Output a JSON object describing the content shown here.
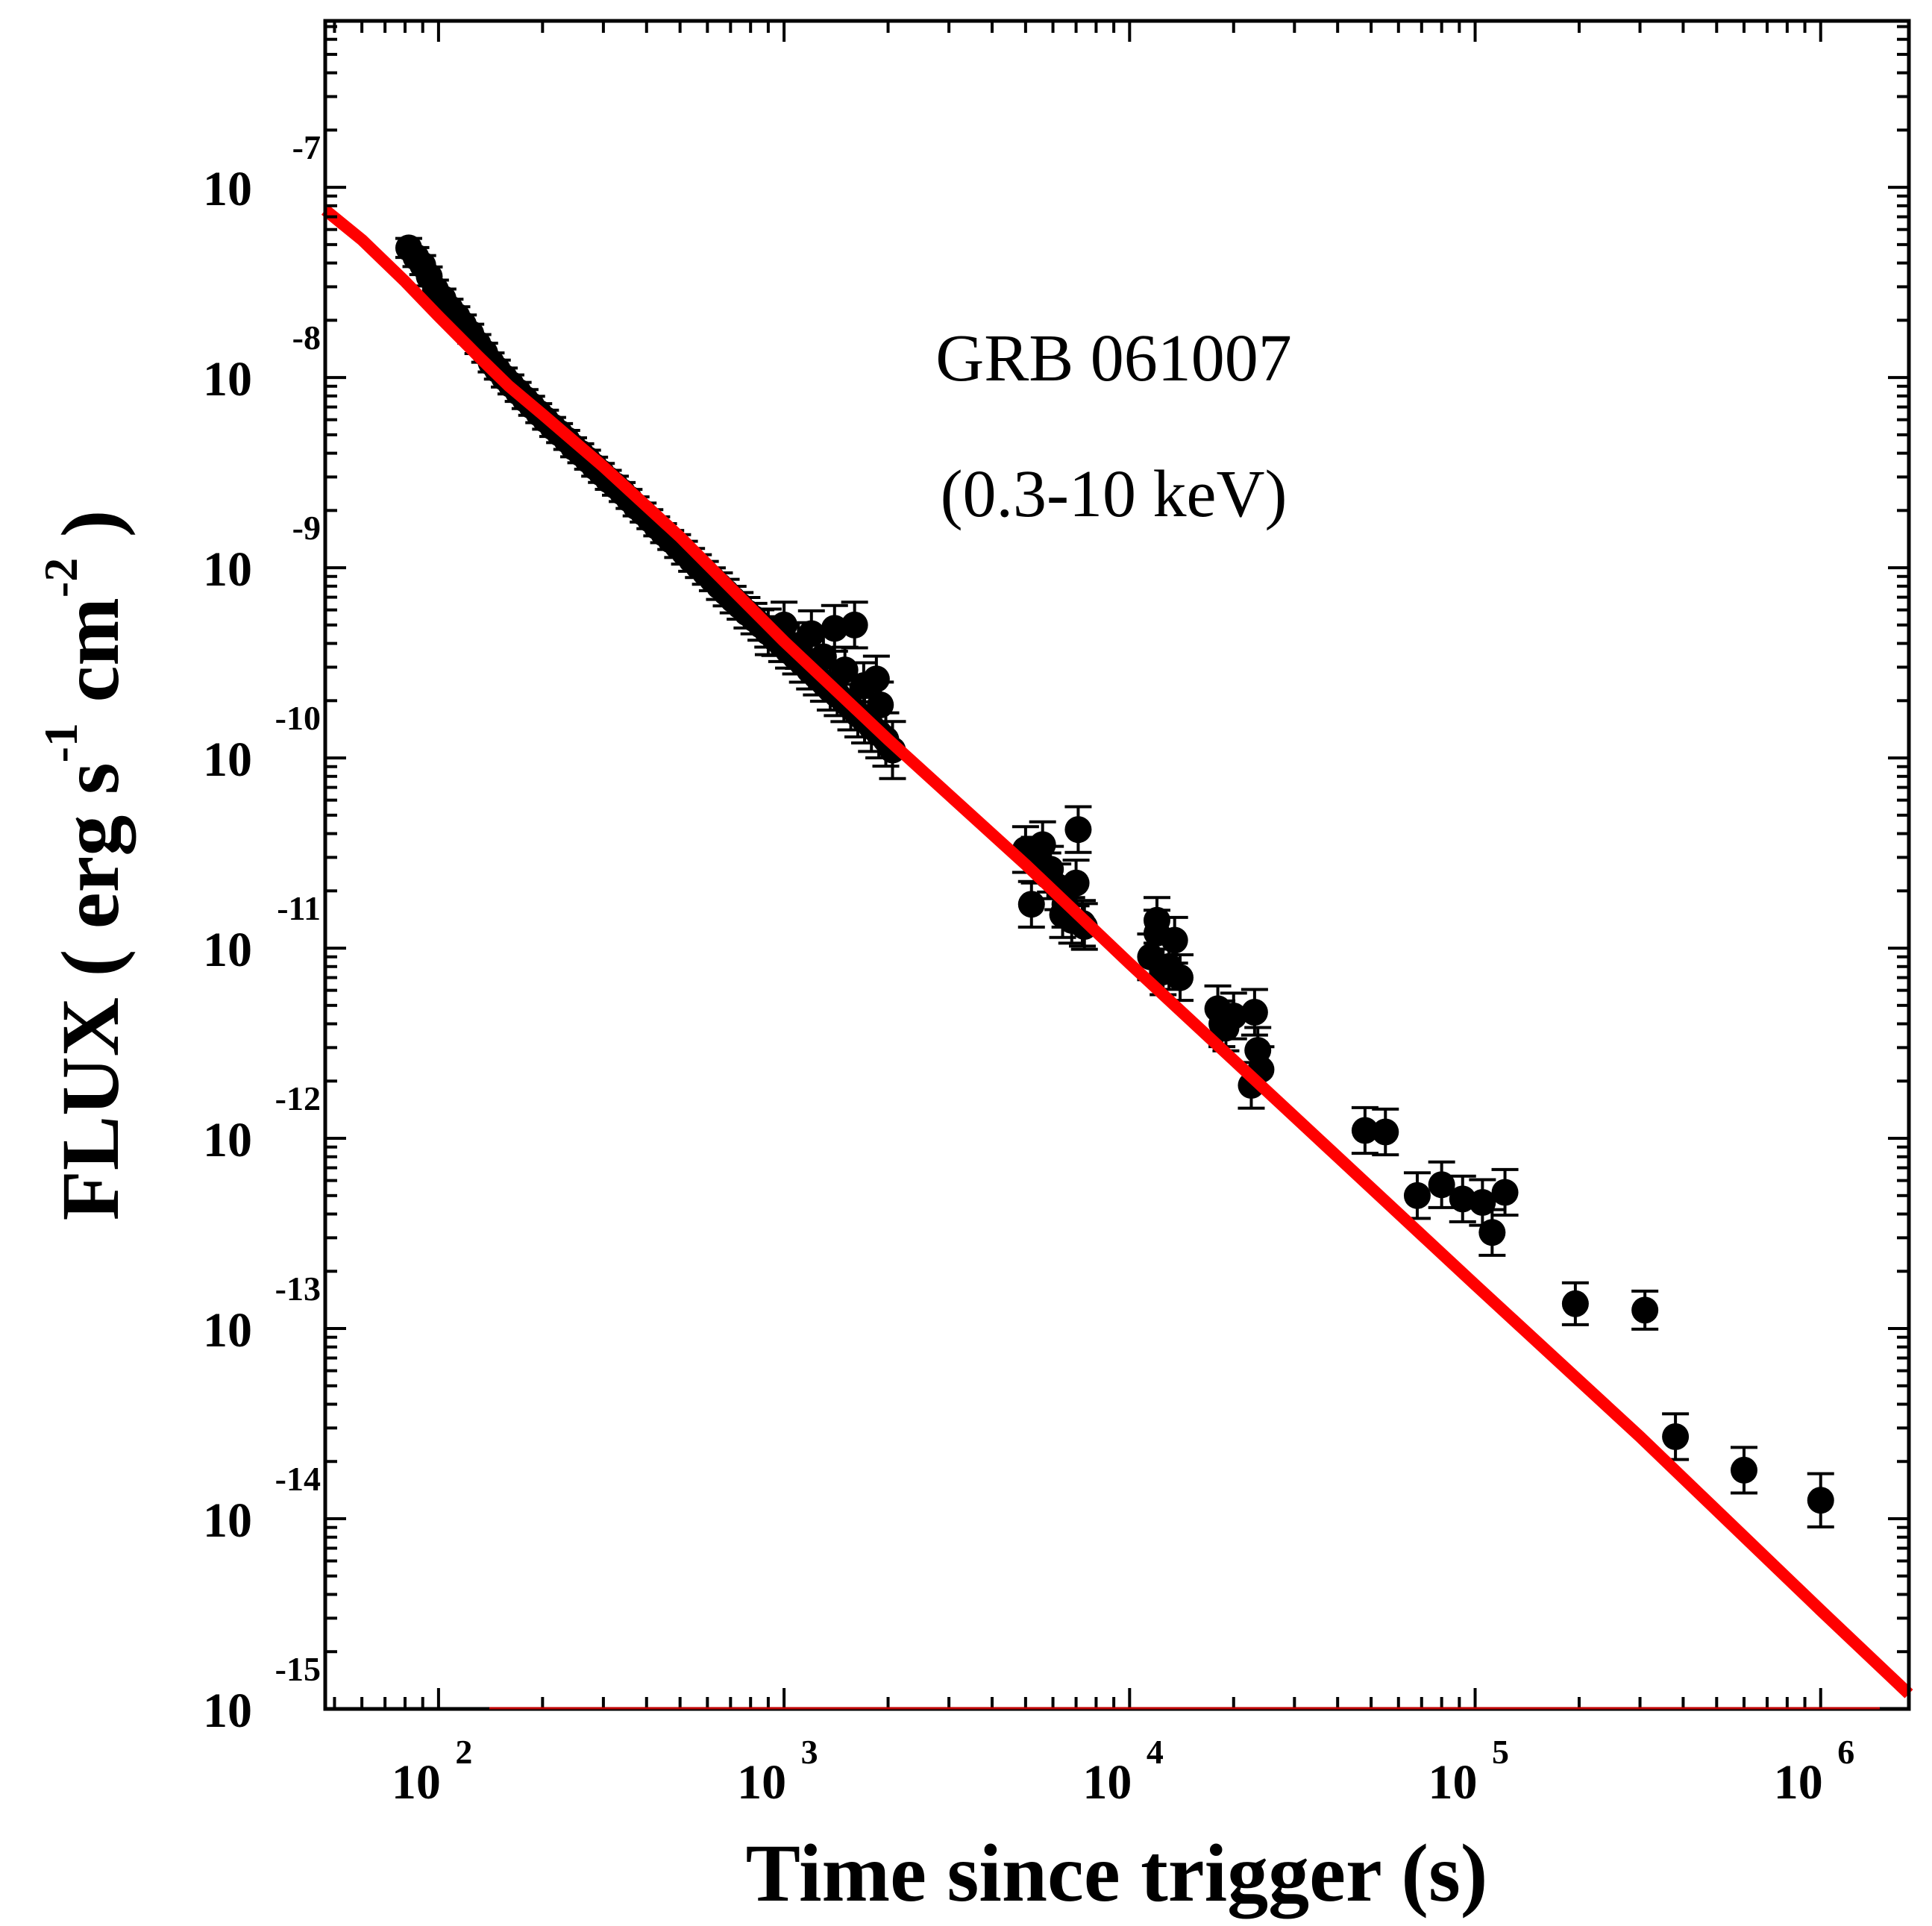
{
  "chart_data": {
    "type": "scatter",
    "title": "",
    "annotation": {
      "line1": "GRB 061007",
      "line2": "(0.3-10 keV)"
    },
    "xlabel": "Time since trigger (s)",
    "ylabel": {
      "prefix": "FLUX ( erg s",
      "exp1": "-1",
      "middle": " cm",
      "exp2": "-2",
      "suffix": " )"
    },
    "xscale": "log",
    "yscale": "log",
    "xlim": [
      47,
      1800000
    ],
    "ylim": [
      1e-15,
      7.5e-07
    ],
    "x_ticks": [
      {
        "value": 100,
        "base": "10",
        "exp": "2"
      },
      {
        "value": 1000,
        "base": "10",
        "exp": "3"
      },
      {
        "value": 10000,
        "base": "10",
        "exp": "4"
      },
      {
        "value": 100000,
        "base": "10",
        "exp": "5"
      },
      {
        "value": 1000000,
        "base": "10",
        "exp": "6"
      }
    ],
    "y_ticks": [
      {
        "value": 1e-07,
        "base": "10",
        "exp": "-7"
      },
      {
        "value": 1e-08,
        "base": "10",
        "exp": "-8"
      },
      {
        "value": 1e-09,
        "base": "10",
        "exp": "-9"
      },
      {
        "value": 1e-10,
        "base": "10",
        "exp": "-10"
      },
      {
        "value": 1e-11,
        "base": "10",
        "exp": "-11"
      },
      {
        "value": 1e-12,
        "base": "10",
        "exp": "-12"
      },
      {
        "value": 1e-13,
        "base": "10",
        "exp": "-13"
      },
      {
        "value": 1e-14,
        "base": "10",
        "exp": "-14"
      },
      {
        "value": 1e-15,
        "base": "10",
        "exp": "-15"
      }
    ],
    "legend": "none",
    "grid": false,
    "colors": {
      "fit": "#ff0000",
      "points": "#000000",
      "baseline": "#c00000"
    },
    "series": [
      {
        "name": "fit",
        "type": "line",
        "x": [
          47,
          60,
          80,
          100,
          130,
          160,
          200,
          300,
          500,
          1000,
          2000,
          5000,
          10000,
          30000,
          100000,
          300000,
          1000000,
          1800000
        ],
        "y": [
          7.6e-08,
          5.3e-08,
          3.2e-08,
          2.1e-08,
          1.3e-08,
          9e-09,
          6.4e-09,
          3.4e-09,
          1.45e-09,
          4.1e-10,
          1.25e-10,
          2.75e-11,
          8.3e-12,
          1.3e-12,
          1.7e-13,
          2.7e-14,
          3.3e-15,
          1.2e-15
        ]
      },
      {
        "name": "early_dense_points",
        "type": "scatter",
        "x": [
          82,
          86,
          90,
          94,
          98,
          103,
          108,
          113,
          118,
          124,
          130,
          136,
          142,
          148,
          155,
          162,
          170,
          178,
          186,
          195,
          204,
          214,
          224,
          235,
          246,
          258,
          270,
          283,
          296,
          310,
          325,
          340,
          356,
          373,
          391,
          409,
          428,
          448,
          470,
          492,
          515,
          540,
          565,
          592,
          620,
          650,
          680,
          712,
          746,
          781,
          818,
          857,
          897,
          940,
          984,
          1030,
          1080,
          1130,
          1185,
          1240,
          1300,
          1360,
          1425,
          1490,
          1560,
          1635,
          1710,
          1790,
          1880,
          1970,
          2060
        ],
        "y": [
          4.8e-08,
          4.3e-08,
          3.9e-08,
          3.4e-08,
          2.9e-08,
          2.6e-08,
          2.3e-08,
          2.1e-08,
          1.9e-08,
          1.7e-08,
          1.5e-08,
          1.35e-08,
          1.2e-08,
          1.1e-08,
          1e-08,
          9.2e-09,
          8.4e-09,
          7.7e-09,
          7.1e-09,
          6.5e-09,
          6e-09,
          5.5e-09,
          5.1e-09,
          4.7e-09,
          4.3e-09,
          4e-09,
          3.7e-09,
          3.4e-09,
          3.15e-09,
          2.9e-09,
          2.7e-09,
          2.5e-09,
          2.3e-09,
          2.1e-09,
          1.95e-09,
          1.8e-09,
          1.65e-09,
          1.52e-09,
          1.4e-09,
          1.3e-09,
          1.2e-09,
          1.1e-09,
          1.02e-09,
          9.4e-10,
          8.7e-10,
          8e-10,
          7.4e-10,
          6.8e-10,
          6.3e-10,
          5.8e-10,
          5.4e-10,
          5e-10,
          4.6e-10,
          4.25e-10,
          3.95e-10,
          3.65e-10,
          3.4e-10,
          3.15e-10,
          2.9e-10,
          2.7e-10,
          2.5e-10,
          2.3e-10,
          2.15e-10,
          2e-10,
          1.85e-10,
          1.7e-10,
          1.58e-10,
          1.46e-10,
          1.35e-10,
          1.25e-10,
          1.1e-10
        ],
        "yerr": [
          0.05,
          0.05,
          0.05,
          0.05,
          0.05,
          0.05,
          0.05,
          0.05,
          0.05,
          0.05,
          0.05,
          0.05,
          0.05,
          0.05,
          0.05,
          0.05,
          0.05,
          0.05,
          0.05,
          0.05,
          0.05,
          0.05,
          0.05,
          0.05,
          0.05,
          0.05,
          0.05,
          0.05,
          0.05,
          0.05,
          0.05,
          0.05,
          0.05,
          0.05,
          0.05,
          0.05,
          0.05,
          0.05,
          0.05,
          0.06,
          0.06,
          0.06,
          0.06,
          0.06,
          0.06,
          0.07,
          0.07,
          0.07,
          0.07,
          0.08,
          0.08,
          0.08,
          0.08,
          0.09,
          0.09,
          0.09,
          0.09,
          0.1,
          0.1,
          0.1,
          0.1,
          0.11,
          0.11,
          0.11,
          0.12,
          0.12,
          0.12,
          0.13,
          0.13,
          0.14,
          0.15
        ]
      },
      {
        "name": "scatter_points",
        "type": "scatter",
        "x": [
          900,
          1100,
          1300,
          1500,
          1700,
          1900,
          1000,
          1200,
          1400,
          1600,
          1850,
          5000,
          5300,
          5600,
          5900,
          6200,
          6500,
          6800,
          7100,
          7400,
          5200,
          5800,
          6400,
          7000,
          7300,
          11500,
          12000,
          12500,
          13500,
          14000,
          12000,
          13000,
          18000,
          19000,
          20000,
          18500,
          23000,
          23500,
          24000,
          22500,
          48000,
          55000,
          68000,
          80000,
          92000,
          105000,
          112000,
          122000,
          195000,
          310000,
          380000,
          600000,
          1000000
        ],
        "y": [
          4.6e-10,
          3.9e-10,
          3.4e-10,
          2.9e-10,
          2.4e-10,
          1.9e-10,
          5e-10,
          4.5e-10,
          4.8e-10,
          5e-10,
          2.6e-10,
          3.3e-11,
          2.9e-11,
          3.5e-11,
          2.6e-11,
          2.1e-11,
          1.7e-11,
          1.4e-11,
          4.2e-11,
          1.3e-11,
          1.7e-11,
          2.4e-11,
          1.5e-11,
          2.2e-11,
          1.35e-11,
          9e-12,
          1.4e-11,
          7.5e-12,
          1.1e-11,
          7e-12,
          1.2e-11,
          8e-12,
          4.8e-12,
          3.8e-12,
          4.4e-12,
          4e-12,
          4.6e-12,
          2.9e-12,
          2.3e-12,
          1.9e-12,
          1.1e-12,
          1.08e-12,
          5e-13,
          5.7e-13,
          4.8e-13,
          4.6e-13,
          3.2e-13,
          5.2e-13,
          1.35e-13,
          1.25e-13,
          2.7e-14,
          1.8e-14,
          1.25e-14
        ],
        "yerr": [
          0.12,
          0.12,
          0.12,
          0.12,
          0.12,
          0.12,
          0.12,
          0.12,
          0.12,
          0.12,
          0.12,
          0.12,
          0.12,
          0.12,
          0.12,
          0.12,
          0.12,
          0.12,
          0.12,
          0.12,
          0.12,
          0.12,
          0.12,
          0.12,
          0.12,
          0.12,
          0.12,
          0.12,
          0.12,
          0.12,
          0.12,
          0.12,
          0.12,
          0.12,
          0.12,
          0.12,
          0.12,
          0.12,
          0.12,
          0.12,
          0.12,
          0.12,
          0.12,
          0.12,
          0.12,
          0.12,
          0.12,
          0.12,
          0.11,
          0.1,
          0.12,
          0.12,
          0.14
        ]
      }
    ]
  }
}
